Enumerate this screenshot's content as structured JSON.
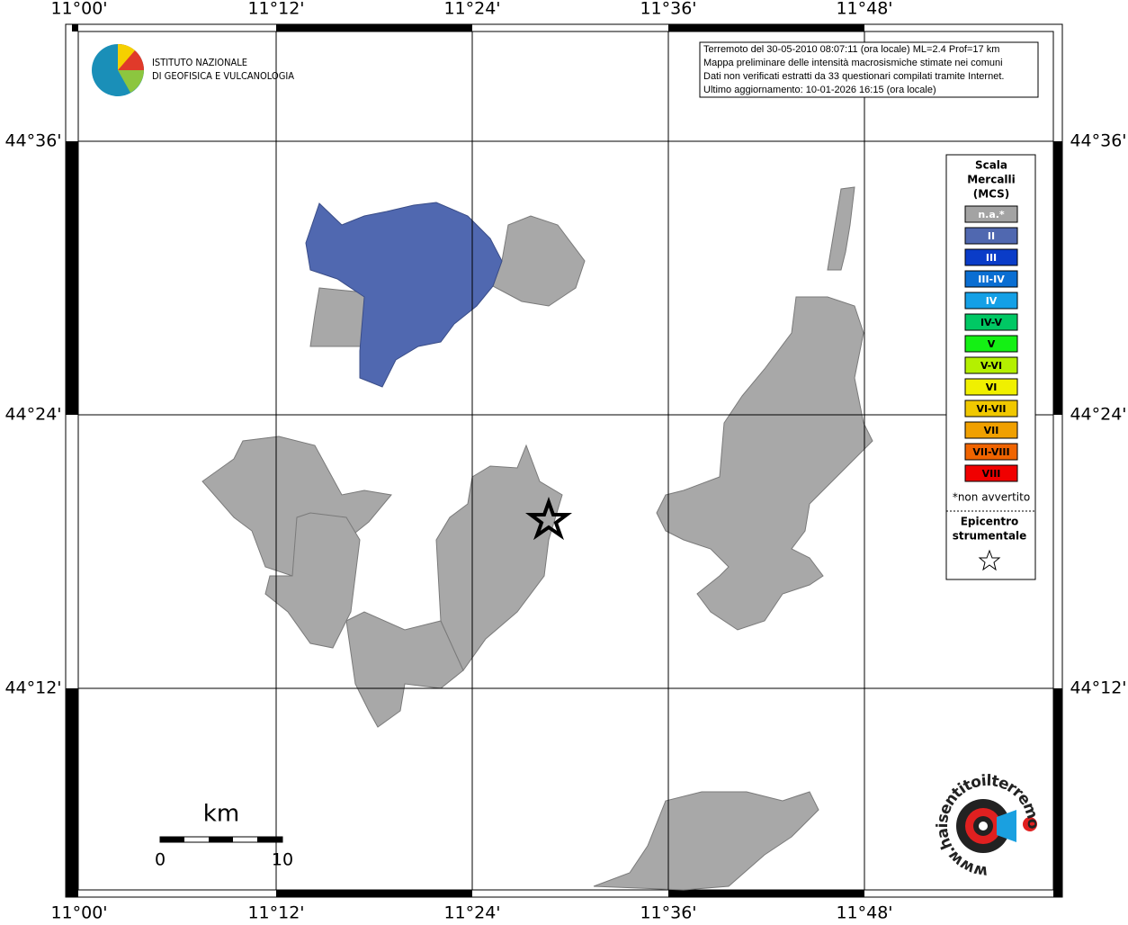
{
  "graticule": {
    "longitudes": [
      "11°00'",
      "11°12'",
      "11°24'",
      "11°36'",
      "11°48'"
    ],
    "latitudes": [
      "44°36'",
      "44°24'",
      "44°12'"
    ]
  },
  "institute_logo": {
    "lines": [
      "ISTITUTO NAZIONALE",
      "DI GEOFISICA E VULCANOLOGIA"
    ]
  },
  "info_box": {
    "lines": [
      "Terremoto del 30-05-2010 08:07:11 (ora locale) ML=2.4 Prof=17 km",
      "Mappa preliminare delle intensità macrosismiche stimate nei comuni",
      "Dati non verificati estratti da 33 questionari compilati tramite Internet.",
      "Ultimo aggiornamento: 10-01-2026 16:15 (ora locale)"
    ]
  },
  "legend": {
    "title_lines": [
      "Scala",
      "Mercalli",
      "(MCS)"
    ],
    "items": [
      {
        "label": "n.a.*",
        "color": "#a3a3a3",
        "text_color": "#ffffff"
      },
      {
        "label": "II",
        "color": "#5068b0",
        "text_color": "#ffffff"
      },
      {
        "label": "III",
        "color": "#0a3cc8",
        "text_color": "#ffffff"
      },
      {
        "label": "III-IV",
        "color": "#0a6ed2",
        "text_color": "#ffffff"
      },
      {
        "label": "IV",
        "color": "#14a0e6",
        "text_color": "#ffffff"
      },
      {
        "label": "IV-V",
        "color": "#00c864",
        "text_color": "#000000"
      },
      {
        "label": "V",
        "color": "#14f014",
        "text_color": "#000000"
      },
      {
        "label": "V-VI",
        "color": "#b4f000",
        "text_color": "#000000"
      },
      {
        "label": "VI",
        "color": "#f0f000",
        "text_color": "#000000"
      },
      {
        "label": "VI-VII",
        "color": "#f0c800",
        "text_color": "#000000"
      },
      {
        "label": "VII",
        "color": "#f0a000",
        "text_color": "#000000"
      },
      {
        "label": "VII-VIII",
        "color": "#f06400",
        "text_color": "#000000"
      },
      {
        "label": "VIII",
        "color": "#f00000",
        "text_color": "#000000"
      }
    ],
    "note": "*non avvertito",
    "epicenter_lines": [
      "Epicentro",
      "strumentale"
    ]
  },
  "scale_bar": {
    "unit": "km",
    "ticks": [
      0,
      10
    ]
  },
  "site_logo": {
    "text": "www.haisentitoilterremoto.it"
  }
}
